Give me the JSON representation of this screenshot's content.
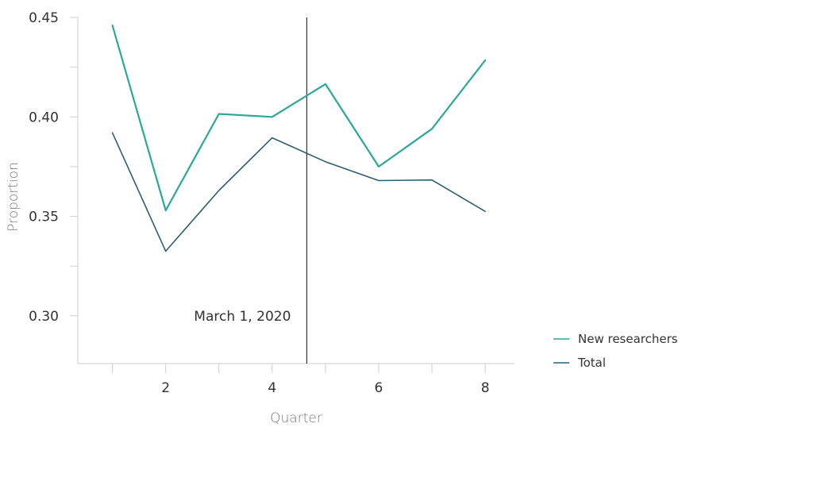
{
  "chart_data": {
    "type": "line",
    "xlabel": "Quarter",
    "ylabel": "Proportion",
    "xlim": [
      0.35,
      8.55
    ],
    "ylim": [
      0.276,
      0.45
    ],
    "xticks": [
      2,
      4,
      6,
      8
    ],
    "xminor_ticks": [
      1,
      3,
      5,
      7
    ],
    "yticks": [
      0.3,
      0.35,
      0.4,
      0.45
    ],
    "ytick_labels": [
      "0.30",
      "0.35",
      "0.40",
      "0.45"
    ],
    "yminor_ticks": [
      0.325,
      0.375,
      0.425
    ],
    "grid": false,
    "legend_position": "right",
    "x": [
      1,
      2,
      3,
      4,
      5,
      6,
      7,
      8
    ],
    "series": [
      {
        "name": "New researchers",
        "color": "#2aa89a",
        "values": [
          0.446,
          0.353,
          0.4015,
          0.4,
          0.4165,
          0.375,
          0.394,
          0.4285
        ]
      },
      {
        "name": "Total",
        "color": "#2d5d73",
        "values": [
          0.392,
          0.3325,
          0.363,
          0.3895,
          0.3775,
          0.368,
          0.3683,
          0.3525
        ]
      }
    ],
    "annotations": [
      {
        "type": "vline",
        "x": 4.65,
        "label": "March 1, 2020",
        "color": "#333333"
      }
    ]
  }
}
